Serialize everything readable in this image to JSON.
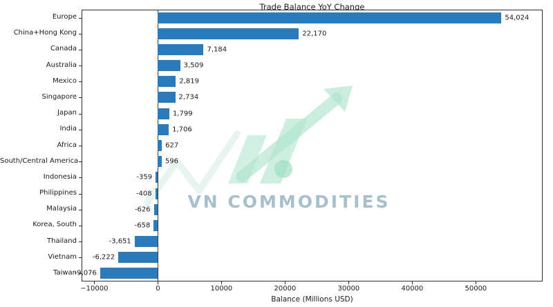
{
  "chart_data": {
    "type": "bar",
    "orientation": "horizontal",
    "title": "Trade Balance YoY Change",
    "xlabel": "Balance (Millions USD)",
    "categories": [
      "Europe",
      "China+Hong Kong",
      "Canada",
      "Australia",
      "Mexico",
      "Singapore",
      "Japan",
      "India",
      "Africa",
      "South/Central America",
      "Indonesia",
      "Philippines",
      "Malaysia",
      "Korea, South",
      "Thailand",
      "Vietnam",
      "Taiwan"
    ],
    "values": [
      54024,
      22170,
      7184,
      3509,
      2819,
      2734,
      1799,
      1706,
      627,
      596,
      -359,
      -408,
      -626,
      -658,
      -3651,
      -6222,
      -9076
    ],
    "value_labels": [
      "54,024",
      "22,170",
      "7,184",
      "3,509",
      "2,819",
      "2,734",
      "1,799",
      "1,706",
      "627",
      "596",
      "-359",
      "-408",
      "-626",
      "-658",
      "-3,651",
      "-6,222",
      "-9,076"
    ],
    "xticks": [
      -10000,
      0,
      10000,
      20000,
      30000,
      40000,
      50000
    ],
    "xtick_labels": [
      "−10000",
      "0",
      "10000",
      "20000",
      "30000",
      "40000",
      "50000"
    ],
    "xlim": [
      -12000,
      60500
    ],
    "bar_color": "#2b7bba",
    "grid": false,
    "legend": null
  },
  "watermark": {
    "text": "VN COMMODITIES",
    "logo_color": "#b4e6d0",
    "text_color": "#8baabe"
  }
}
